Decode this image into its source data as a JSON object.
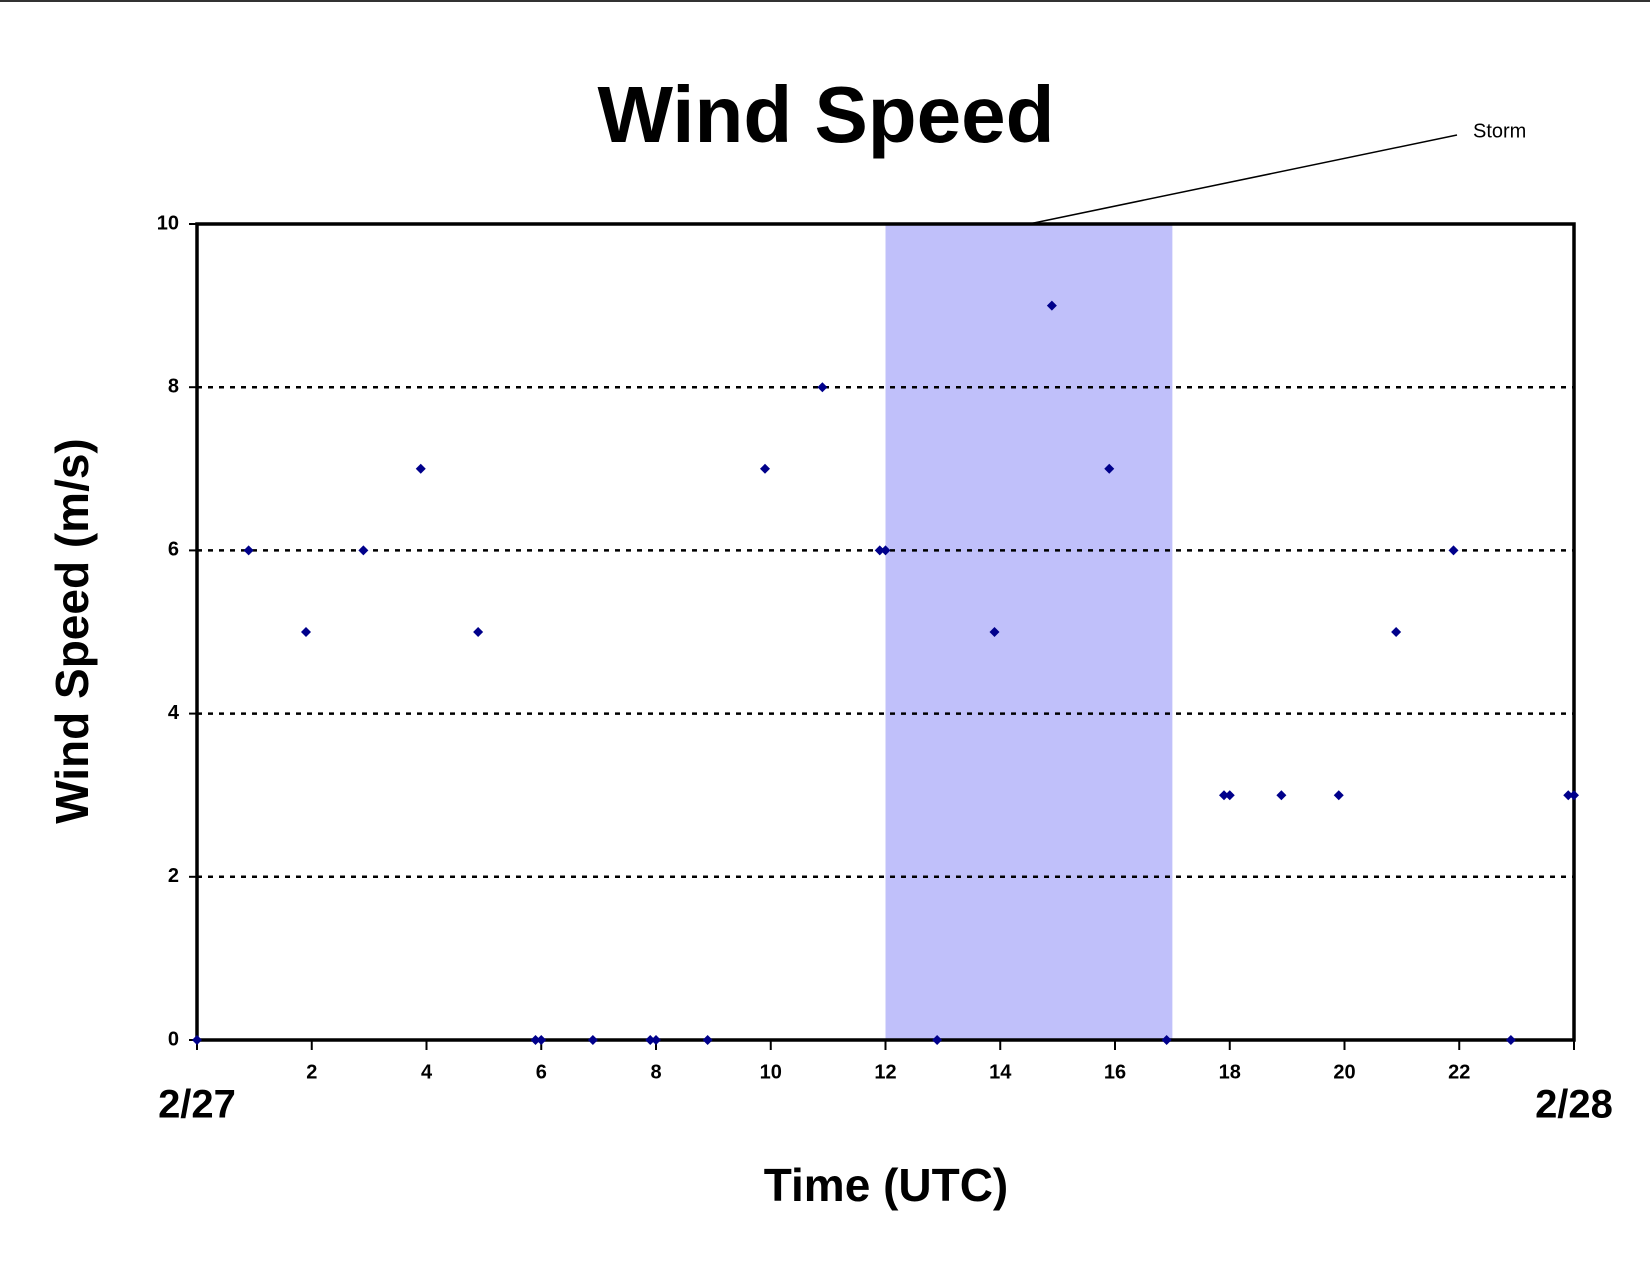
{
  "chart_data": {
    "type": "scatter",
    "title": "Wind Speed",
    "x_label": "Time (UTC)",
    "y_label": "Wind Speed (m/s)",
    "series": [
      {
        "color": "#00008b",
        "x": [
          0,
          0.9,
          1.9,
          2.9,
          3.9,
          4.9,
          5.9,
          6,
          6.9,
          7.9,
          8,
          8.9,
          9.9,
          10.9,
          11.9,
          12,
          12.9,
          13.9,
          14.9,
          15.9,
          16.9,
          17.9,
          18,
          18.9,
          19.9,
          20.9,
          21.9,
          22.9,
          23.9,
          24
        ],
        "values": [
          0,
          6,
          5,
          6,
          7,
          5,
          0,
          0,
          0,
          0,
          0,
          0,
          7,
          8,
          6,
          6,
          0,
          5,
          9,
          7,
          0,
          3,
          3,
          3,
          3,
          5,
          6,
          0,
          3,
          3
        ]
      }
    ],
    "shade": {
      "x": [
        12,
        17
      ],
      "label": "Storm",
      "color": "#c0c0fa"
    },
    "xlim": [
      0,
      24
    ],
    "xticks": [
      {
        "value": 0,
        "label": "2/27"
      },
      2,
      4,
      6,
      8,
      10,
      12,
      14,
      16,
      18,
      20,
      22,
      {
        "value": 24,
        "label": "2/28"
      }
    ],
    "ylim": [
      0,
      10
    ],
    "yticks": [
      0,
      2,
      4,
      6,
      8,
      10
    ],
    "grid": true
  }
}
